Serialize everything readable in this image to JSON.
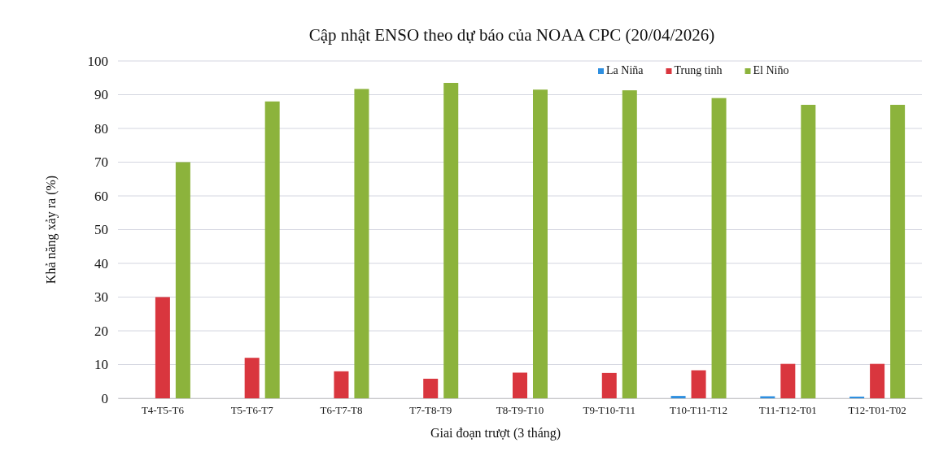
{
  "chart_data": {
    "type": "bar",
    "title": "Cập nhật ENSO theo dự báo của NOAA CPC (20/04/2026)",
    "xlabel": "Giai đoạn trượt (3 tháng)",
    "ylabel": "Khả năng xảy ra (%)",
    "categories": [
      "T4-T5-T6",
      "T5-T6-T7",
      "T6-T7-T8",
      "T7-T8-T9",
      "T8-T9-T10",
      "T9-T10-T11",
      "T10-T11-T12",
      "T11-T12-T01",
      "T12-T01-T02"
    ],
    "series": [
      {
        "name": "La Niña",
        "color": "#2e8fe0",
        "values": [
          0,
          0,
          0,
          0,
          0,
          0,
          0.7,
          0.6,
          0.5
        ]
      },
      {
        "name": "Trung tinh",
        "color": "#d9363e",
        "values": [
          30,
          12,
          8,
          5.8,
          7.6,
          7.5,
          8.3,
          10.2,
          10.2
        ]
      },
      {
        "name": "El Niño",
        "color": "#8cb33c",
        "values": [
          70,
          88,
          91.7,
          93.5,
          91.5,
          91.3,
          89,
          87,
          87
        ]
      }
    ],
    "ylim": [
      0,
      100
    ],
    "yticks": [
      0,
      10,
      20,
      30,
      40,
      50,
      60,
      70,
      80,
      90,
      100
    ],
    "grid": "y",
    "legend": "top right"
  }
}
